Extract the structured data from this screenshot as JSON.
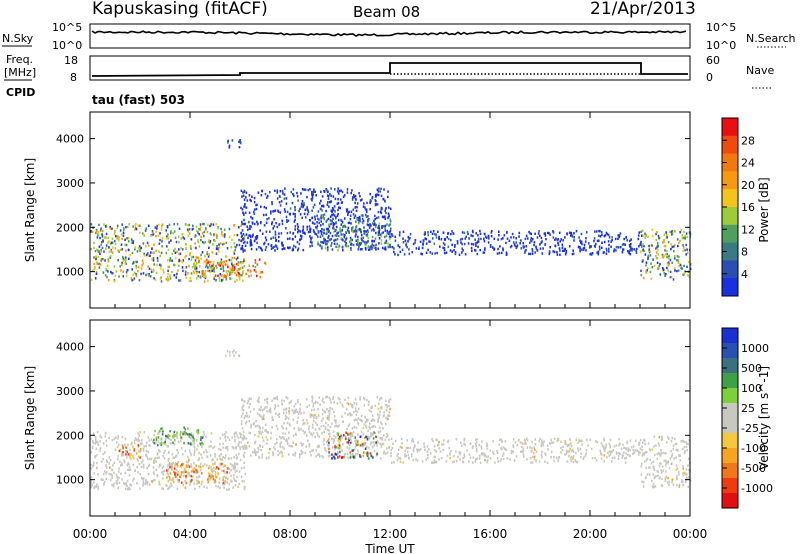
{
  "header": {
    "station": "Kapuskasing (fitACF)",
    "beam": "Beam 08",
    "date": "21/Apr/2013"
  },
  "strip_noise": {
    "left_label": "N.Sky",
    "right_label": "N.Search",
    "left_ticks": [
      "10^5",
      "10^0"
    ],
    "right_ticks": [
      "10^5",
      "10^0"
    ]
  },
  "strip_freq": {
    "left_label_1": "Freq.",
    "left_label_2": "[MHz]",
    "cpid_label": "CPID",
    "right_label": "Nave",
    "left_ticks": [
      "18",
      "8"
    ],
    "right_ticks": [
      "60",
      "0"
    ]
  },
  "program_label": "tau (fast) 503",
  "axes": {
    "ylabel": "Slant Range [km]",
    "xlabel": "Time UT",
    "x_ticks": [
      "00:00",
      "04:00",
      "08:00",
      "12:00",
      "16:00",
      "20:00",
      "00:00"
    ],
    "x_tick_hours": [
      0,
      4,
      8,
      12,
      16,
      20,
      24
    ],
    "y_ticks": [
      1000,
      2000,
      3000,
      4000
    ],
    "ylim": [
      180,
      4600
    ],
    "xlim": [
      0,
      24
    ]
  },
  "colors": {
    "power": [
      "#1a2fe0",
      "#2b4fb0",
      "#3a7a85",
      "#4fa060",
      "#9ccc3a",
      "#f2c41e",
      "#f59a12",
      "#f07a10",
      "#f04a10",
      "#e81010"
    ],
    "velocity": [
      "#e01010",
      "#f03a10",
      "#f07818",
      "#f7a521",
      "#f5c842",
      "#c8c8c0",
      "#c8c8c0",
      "#7ed03a",
      "#40a048",
      "#3a7080",
      "#2a50b0",
      "#1a30d0"
    ]
  },
  "chart_data": [
    {
      "type": "heatmap",
      "title": "",
      "colorbar_label": "Power [dB]",
      "colorbar_ticks": [
        "28",
        "24",
        "20",
        "16",
        "12",
        "8",
        "4"
      ],
      "xlabel": "",
      "ylabel": "Slant Range [km]",
      "xlim": [
        0,
        24
      ],
      "ylim": [
        180,
        4600
      ],
      "regions": [
        {
          "t0": 0.0,
          "t1": 6.2,
          "r0": 800,
          "r1": 2100,
          "level": "high"
        },
        {
          "t0": 4.0,
          "t1": 7.0,
          "r0": 900,
          "r1": 1300,
          "level": "peak"
        },
        {
          "t0": 6.0,
          "t1": 12.0,
          "r0": 1500,
          "r1": 2900,
          "level": "low"
        },
        {
          "t0": 9.0,
          "t1": 12.0,
          "r0": 1500,
          "r1": 2300,
          "level": "mid"
        },
        {
          "t0": 12.0,
          "t1": 22.0,
          "r0": 1400,
          "r1": 1950,
          "level": "low"
        },
        {
          "t0": 22.0,
          "t1": 24.0,
          "r0": 850,
          "r1": 2000,
          "level": "high"
        },
        {
          "t0": 5.4,
          "t1": 6.0,
          "r0": 3800,
          "r1": 4000,
          "level": "low"
        }
      ]
    },
    {
      "type": "heatmap",
      "title": "",
      "colorbar_label": "Velocity [m s^-1]",
      "colorbar_ticks": [
        "1000",
        "500",
        "100",
        "25",
        "-25",
        "-100",
        "-500",
        "-1000"
      ],
      "xlabel": "Time UT",
      "ylabel": "Slant Range [km]",
      "xlim": [
        0,
        24
      ],
      "ylim": [
        180,
        4600
      ],
      "regions": [
        {
          "t0": 0.0,
          "t1": 6.2,
          "r0": 800,
          "r1": 2100,
          "level": "ground"
        },
        {
          "t0": 1.0,
          "t1": 2.0,
          "r0": 1500,
          "r1": 1800,
          "level": "negative"
        },
        {
          "t0": 2.5,
          "t1": 4.5,
          "r0": 1800,
          "r1": 2200,
          "level": "positive"
        },
        {
          "t0": 3.0,
          "t1": 5.5,
          "r0": 950,
          "r1": 1400,
          "level": "negative"
        },
        {
          "t0": 6.0,
          "t1": 12.0,
          "r0": 1500,
          "r1": 2900,
          "level": "ground"
        },
        {
          "t0": 9.5,
          "t1": 11.5,
          "r0": 1500,
          "r1": 2100,
          "level": "mixed"
        },
        {
          "t0": 12.0,
          "t1": 22.0,
          "r0": 1400,
          "r1": 1950,
          "level": "ground"
        },
        {
          "t0": 22.0,
          "t1": 24.0,
          "r0": 850,
          "r1": 2000,
          "level": "ground"
        },
        {
          "t0": 5.4,
          "t1": 6.0,
          "r0": 3800,
          "r1": 4000,
          "level": "ground"
        }
      ]
    }
  ]
}
